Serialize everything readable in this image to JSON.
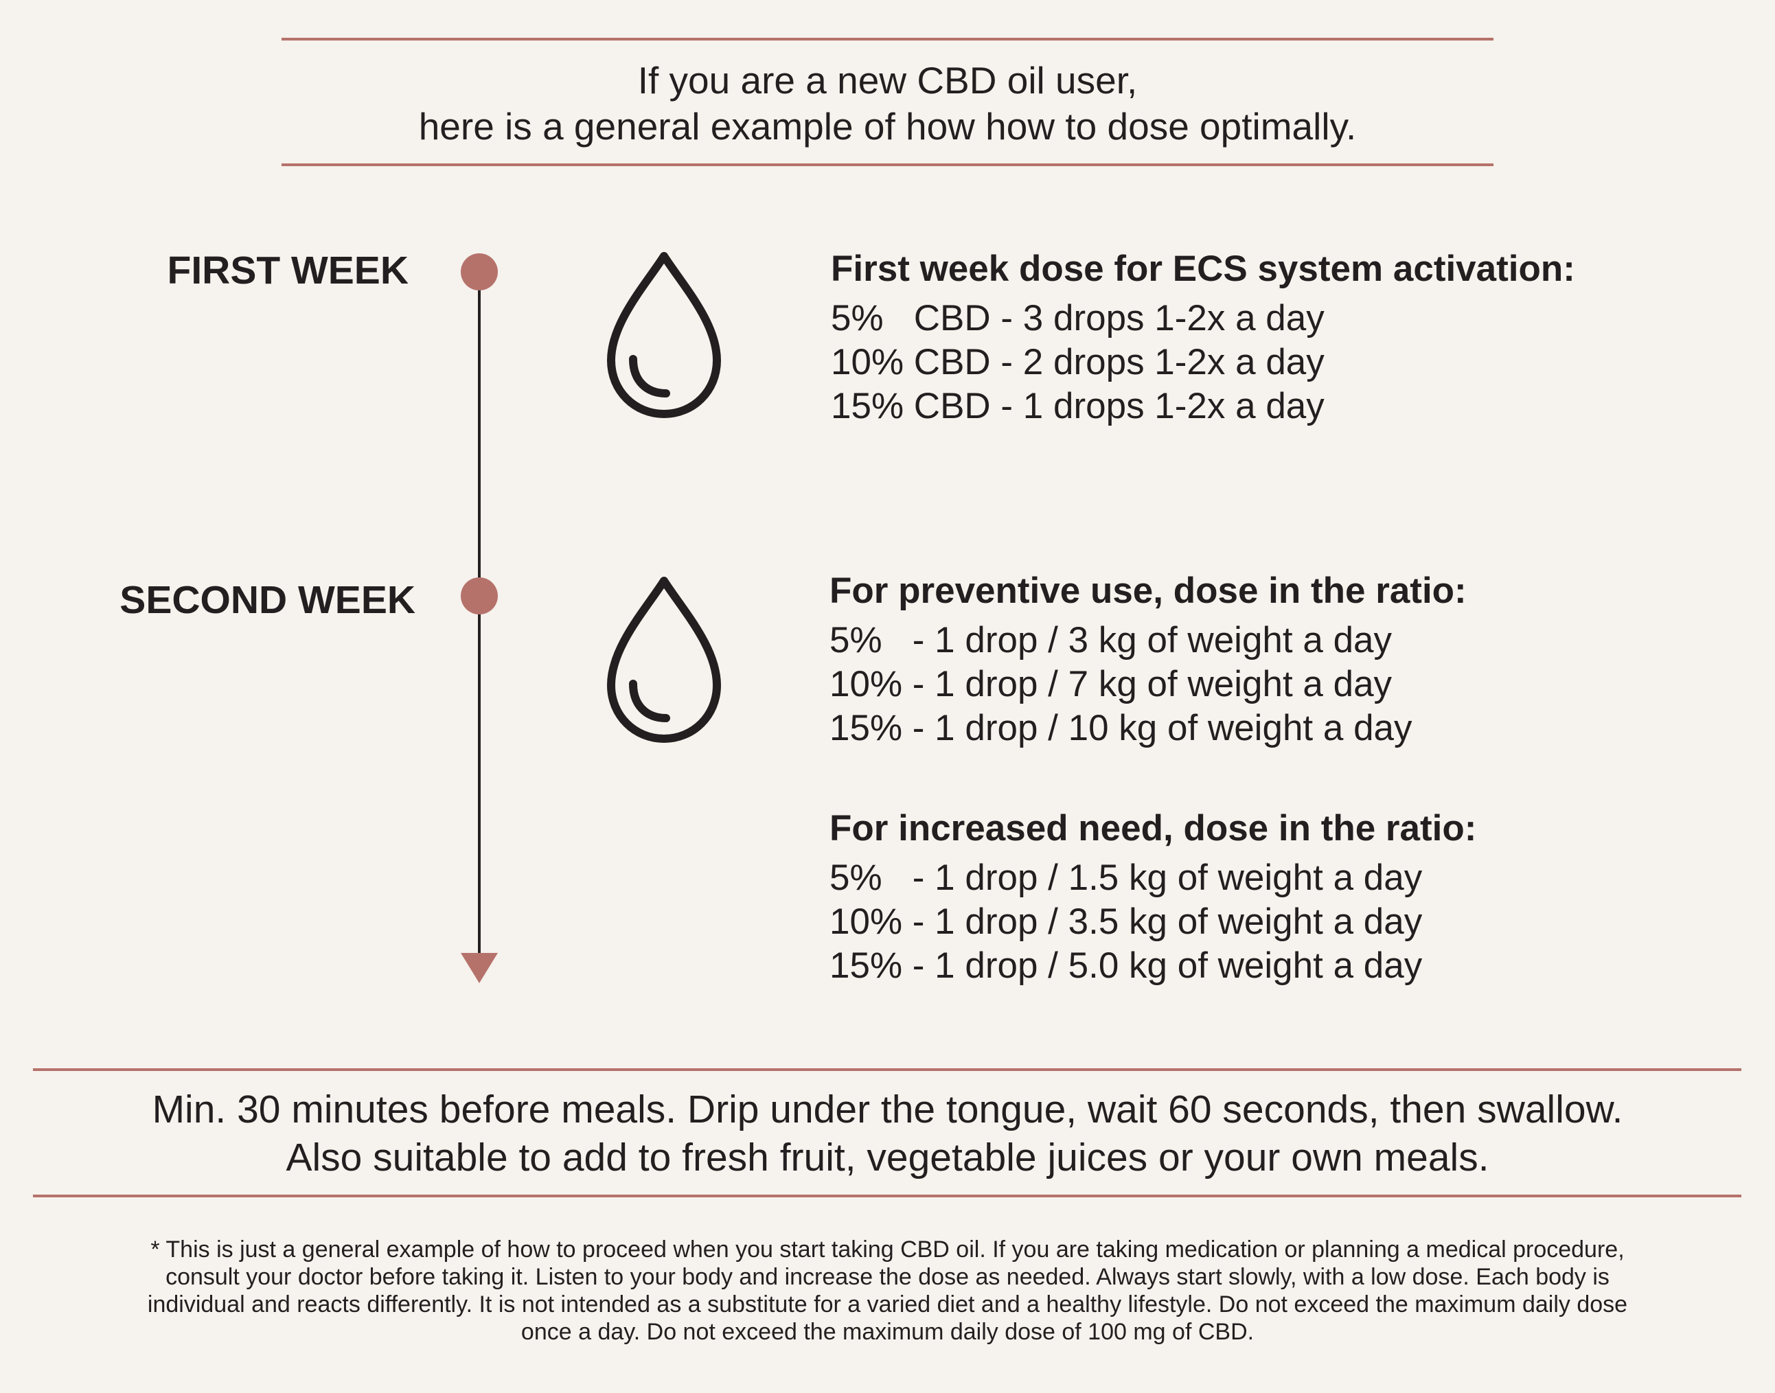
{
  "intro": {
    "line1": "If you are a new CBD oil user,",
    "line2": "here is a general example of how how to dose optimally."
  },
  "timeline": {
    "first_week_label": "FIRST WEEK",
    "second_week_label": "SECOND WEEK",
    "icon": "drop-icon"
  },
  "first_week": {
    "heading": "First week dose for ECS system activation:",
    "doses": [
      "5%   CBD - 3 drops 1-2x a day",
      "10% CBD - 2 drops 1-2x a day",
      "15% CBD - 1 drops 1-2x a day"
    ]
  },
  "preventive": {
    "heading": "For preventive use, dose in the ratio:",
    "doses": [
      "5%   - 1 drop / 3 kg of weight a day",
      "10% - 1 drop / 7 kg of weight a day",
      "15% - 1 drop / 10 kg of weight a day"
    ]
  },
  "increased": {
    "heading": "For increased need, dose in the ratio:",
    "doses": [
      "5%   - 1 drop / 1.5 kg of weight a day",
      "10% - 1 drop / 3.5 kg of weight a day",
      "15% - 1 drop / 5.0 kg of weight a day"
    ]
  },
  "usage": {
    "line1": "Min. 30 minutes before meals. Drip under the tongue, wait 60 seconds, then swallow.",
    "line2": "Also suitable to add to fresh fruit, vegetable juices or your own meals."
  },
  "disclaimer": {
    "lines": [
      "* This is just a general example of how to proceed when you start taking CBD oil. If you are taking medication or planning a medical procedure,",
      "consult your doctor before taking it. Listen to your body and increase the dose as needed. Always start slowly, with a low dose. Each body is",
      "individual and reacts differently. It is not intended as a substitute for a varied diet and a healthy lifestyle. Do not exceed the maximum daily dose",
      "once a day. Do not exceed the maximum daily dose of 100 mg of CBD."
    ]
  },
  "colors": {
    "accent": "#b5726b",
    "text": "#231f20",
    "background": "#f6f2ed"
  }
}
